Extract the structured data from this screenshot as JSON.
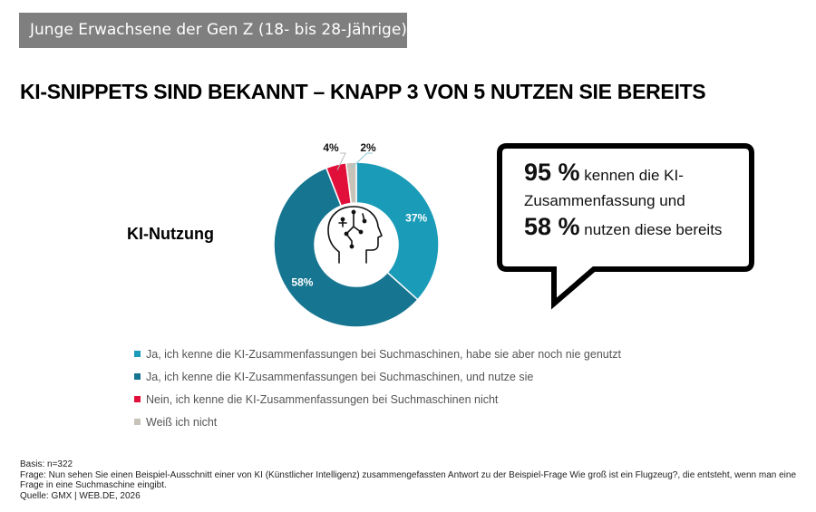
{
  "header": {
    "tag": "Junge Erwachsene der Gen Z (18- bis 28-Jährige)",
    "title": "KI-SNIPPETS SIND BEKANNT – KNAPP 3 VON 5 NUTZEN SIE BEREITS"
  },
  "chart_label": "KI-Nutzung",
  "chart_data": {
    "type": "pie",
    "variant": "donut",
    "title": "KI-Nutzung",
    "categories": [
      "Ja, ich kenne die KI-Zusammenfassungen bei Suchmaschinen, habe sie aber noch nie genutzt",
      "Ja, ich kenne die KI-Zusammenfassungen bei Suchmaschinen, und nutze sie",
      "Nein, ich kenne die KI-Zusammenfassungen bei Suchmaschinen nicht",
      "Weiß ich nicht"
    ],
    "values": [
      37,
      58,
      4,
      2
    ],
    "labels": [
      "37%",
      "58%",
      "4%",
      "2%"
    ],
    "colors": [
      "#1a9bb8",
      "#167590",
      "#e0103a",
      "#c8c3b8"
    ],
    "legend_position": "bottom",
    "center_icon": "ai-head-icon"
  },
  "callout": {
    "stat1": "95 %",
    "text1": "kennen die KI-Zusammenfassung und",
    "stat2": "58 %",
    "text2": "nutzen diese bereits"
  },
  "footer": {
    "basis": "Basis: n=322",
    "frage": "Frage: Nun sehen Sie einen Beispiel-Ausschnitt einer von KI (Künstlicher Intelligenz) zusammengefassten Antwort zu der Beispiel-Frage Wie groß ist ein Flugzeug?, die entsteht, wenn man eine Frage in eine Suchmaschine eingibt.",
    "quelle": "Quelle: GMX | WEB.DE, 2026"
  }
}
